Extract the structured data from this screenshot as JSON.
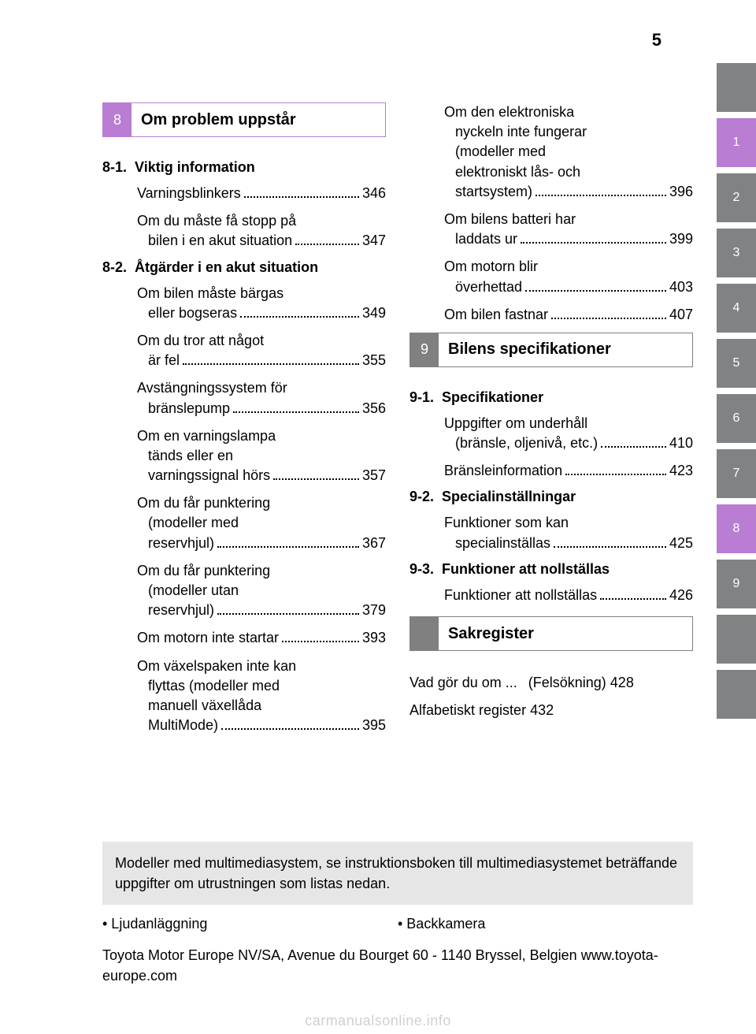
{
  "page_number": "5",
  "colors": {
    "purple": "#b97dd4",
    "gray": "#808284",
    "note_bg": "#e6e6e6",
    "watermark": "#d0d0d0"
  },
  "section8": {
    "num": "8",
    "title": "Om problem uppstår",
    "sub1": {
      "num": "8-1.",
      "title": "Viktig information"
    },
    "sub1_items": [
      {
        "lines": [],
        "last": "Varningsblinkers",
        "page": "346"
      },
      {
        "lines": [
          "Om du måste få stopp på"
        ],
        "last": "bilen i en akut situation",
        "page": "347",
        "indent": true
      }
    ],
    "sub2": {
      "num": "8-2.",
      "title": "Åtgärder i en akut situation"
    },
    "sub2_items_left": [
      {
        "lines": [
          "Om bilen måste bärgas"
        ],
        "last": "eller bogseras",
        "page": "349",
        "indent": true
      },
      {
        "lines": [
          "Om du tror att något"
        ],
        "last": "är fel",
        "page": "355",
        "indent": true
      },
      {
        "lines": [
          "Avstängningssystem för"
        ],
        "last": "bränslepump",
        "page": "356",
        "indent": true
      },
      {
        "lines": [
          "Om en varningslampa",
          "tänds eller en"
        ],
        "last": "varningssignal hörs",
        "page": "357",
        "indent2": true
      },
      {
        "lines": [
          "Om du får punktering",
          "(modeller med"
        ],
        "last": "reservhjul)",
        "page": "367",
        "indent2": true
      },
      {
        "lines": [
          "Om du får punktering",
          "(modeller utan"
        ],
        "last": "reservhjul)",
        "page": "379",
        "indent2": true
      },
      {
        "lines": [],
        "last": "Om motorn inte startar",
        "page": "393"
      },
      {
        "lines": [
          "Om växelspaken inte kan",
          "flyttas (modeller med",
          "manuell växellåda"
        ],
        "last": "MultiMode)",
        "page": "395",
        "indent2": true
      }
    ],
    "sub2_items_right": [
      {
        "lines": [
          "Om den elektroniska",
          "nyckeln inte fungerar",
          "(modeller med",
          "elektroniskt lås- och"
        ],
        "last": "startsystem)",
        "page": "396",
        "indent2": true
      },
      {
        "lines": [
          "Om bilens batteri har"
        ],
        "last": "laddats ur",
        "page": "399",
        "indent": true
      },
      {
        "lines": [
          "Om motorn blir"
        ],
        "last": "överhettad",
        "page": "403",
        "indent": true
      },
      {
        "lines": [],
        "last": "Om bilen fastnar",
        "page": "407"
      }
    ]
  },
  "section9": {
    "num": "9",
    "title": "Bilens specifikationer",
    "sub1": {
      "num": "9-1.",
      "title": "Specifikationer"
    },
    "sub1_items": [
      {
        "lines": [
          "Uppgifter om underhåll"
        ],
        "last": "(bränsle, oljenivå, etc.)",
        "page": "410",
        "indent": true
      },
      {
        "lines": [],
        "last": "Bränsleinformation",
        "page": "423"
      }
    ],
    "sub2": {
      "num": "9-2.",
      "title": "Specialinställningar"
    },
    "sub2_items": [
      {
        "lines": [
          "Funktioner som kan"
        ],
        "last": "specialinställas",
        "page": "425",
        "indent": true
      }
    ],
    "sub3": {
      "num": "9-3.",
      "title": "Funktioner att nollställas"
    },
    "sub3_items": [
      {
        "lines": [],
        "last": "Funktioner att nollställas",
        "page": "426"
      }
    ]
  },
  "index_section": {
    "title": "Sakregister",
    "items": [
      {
        "lines": [
          "Vad gör du om ..."
        ],
        "last": "(Felsökning)",
        "page": "428",
        "indent": true
      },
      {
        "lines": [],
        "last": "Alfabetiskt register",
        "page": "432"
      }
    ]
  },
  "note": "Modeller med multimediasystem, se instruktionsboken till multimediasystemet beträffande uppgifter om utrustningen som listas nedan.",
  "bullets": {
    "a": "• Ljudanläggning",
    "b": "• Backkamera"
  },
  "footer": "Toyota Motor Europe NV/SA, Avenue du Bourget 60 - 1140 Bryssel, Belgien www.toyota-europe.com",
  "watermark": "carmanualsonline.info",
  "tabs": [
    "",
    "1",
    "2",
    "3",
    "4",
    "5",
    "6",
    "7",
    "8",
    "9",
    "",
    ""
  ]
}
